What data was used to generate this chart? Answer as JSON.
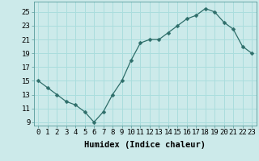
{
  "x": [
    0,
    1,
    2,
    3,
    4,
    5,
    6,
    7,
    8,
    9,
    10,
    11,
    12,
    13,
    14,
    15,
    16,
    17,
    18,
    19,
    20,
    21,
    22,
    23
  ],
  "y": [
    15,
    14,
    13,
    12,
    11.5,
    10.5,
    9,
    10.5,
    13,
    15,
    18,
    20.5,
    21,
    21,
    22,
    23,
    24,
    24.5,
    25.5,
    25,
    23.5,
    22.5,
    20,
    19
  ],
  "xlabel": "Humidex (Indice chaleur)",
  "line_color": "#2e6e6a",
  "marker": "D",
  "marker_size": 2.5,
  "bg_color": "#cceaea",
  "grid_color": "#aadddd",
  "xlim": [
    -0.5,
    23.5
  ],
  "ylim": [
    8.5,
    26.5
  ],
  "yticks": [
    9,
    11,
    13,
    15,
    17,
    19,
    21,
    23,
    25
  ],
  "xticks": [
    0,
    1,
    2,
    3,
    4,
    5,
    6,
    7,
    8,
    9,
    10,
    11,
    12,
    13,
    14,
    15,
    16,
    17,
    18,
    19,
    20,
    21,
    22,
    23
  ],
  "xtick_labels": [
    "0",
    "1",
    "2",
    "3",
    "4",
    "5",
    "6",
    "7",
    "8",
    "9",
    "10",
    "11",
    "12",
    "13",
    "14",
    "15",
    "16",
    "17",
    "18",
    "19",
    "20",
    "21",
    "22",
    "23"
  ],
  "tick_fontsize": 6.5,
  "label_fontsize": 7.5
}
